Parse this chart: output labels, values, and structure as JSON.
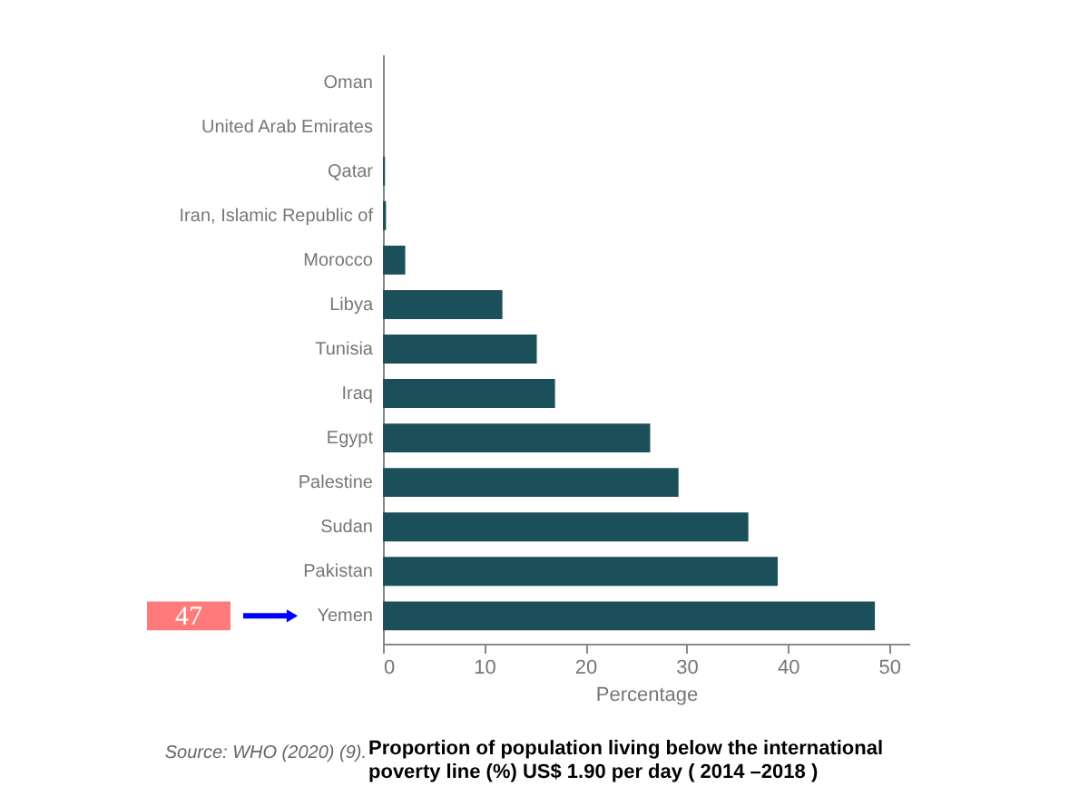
{
  "chart_data": {
    "type": "bar",
    "orientation": "horizontal",
    "title": "Proportion of population living below the international poverty line (%) US$ 1.90        per day (  2014  –2018  )",
    "xlabel": "Percentage",
    "categories": [
      "Oman",
      "United Arab Emirates",
      "Qatar",
      "Iran, Islamic Republic of",
      "Morocco",
      "Libya",
      "Tunisia",
      "Iraq",
      "Egypt",
      "Palestine",
      "Sudan",
      "Pakistan",
      "Yemen"
    ],
    "values": [
      0,
      0,
      0.2,
      0.3,
      2.2,
      11.8,
      15.2,
      17.0,
      26.4,
      29.2,
      36.1,
      39.0,
      48.6
    ],
    "color": "#1b4f5a",
    "xlim": [
      0,
      52
    ],
    "xticks": [
      0,
      10,
      20,
      30,
      40,
      50
    ],
    "grid": false,
    "annotations": [
      "47",
      "Source: WHO (2020) (9)."
    ]
  }
}
